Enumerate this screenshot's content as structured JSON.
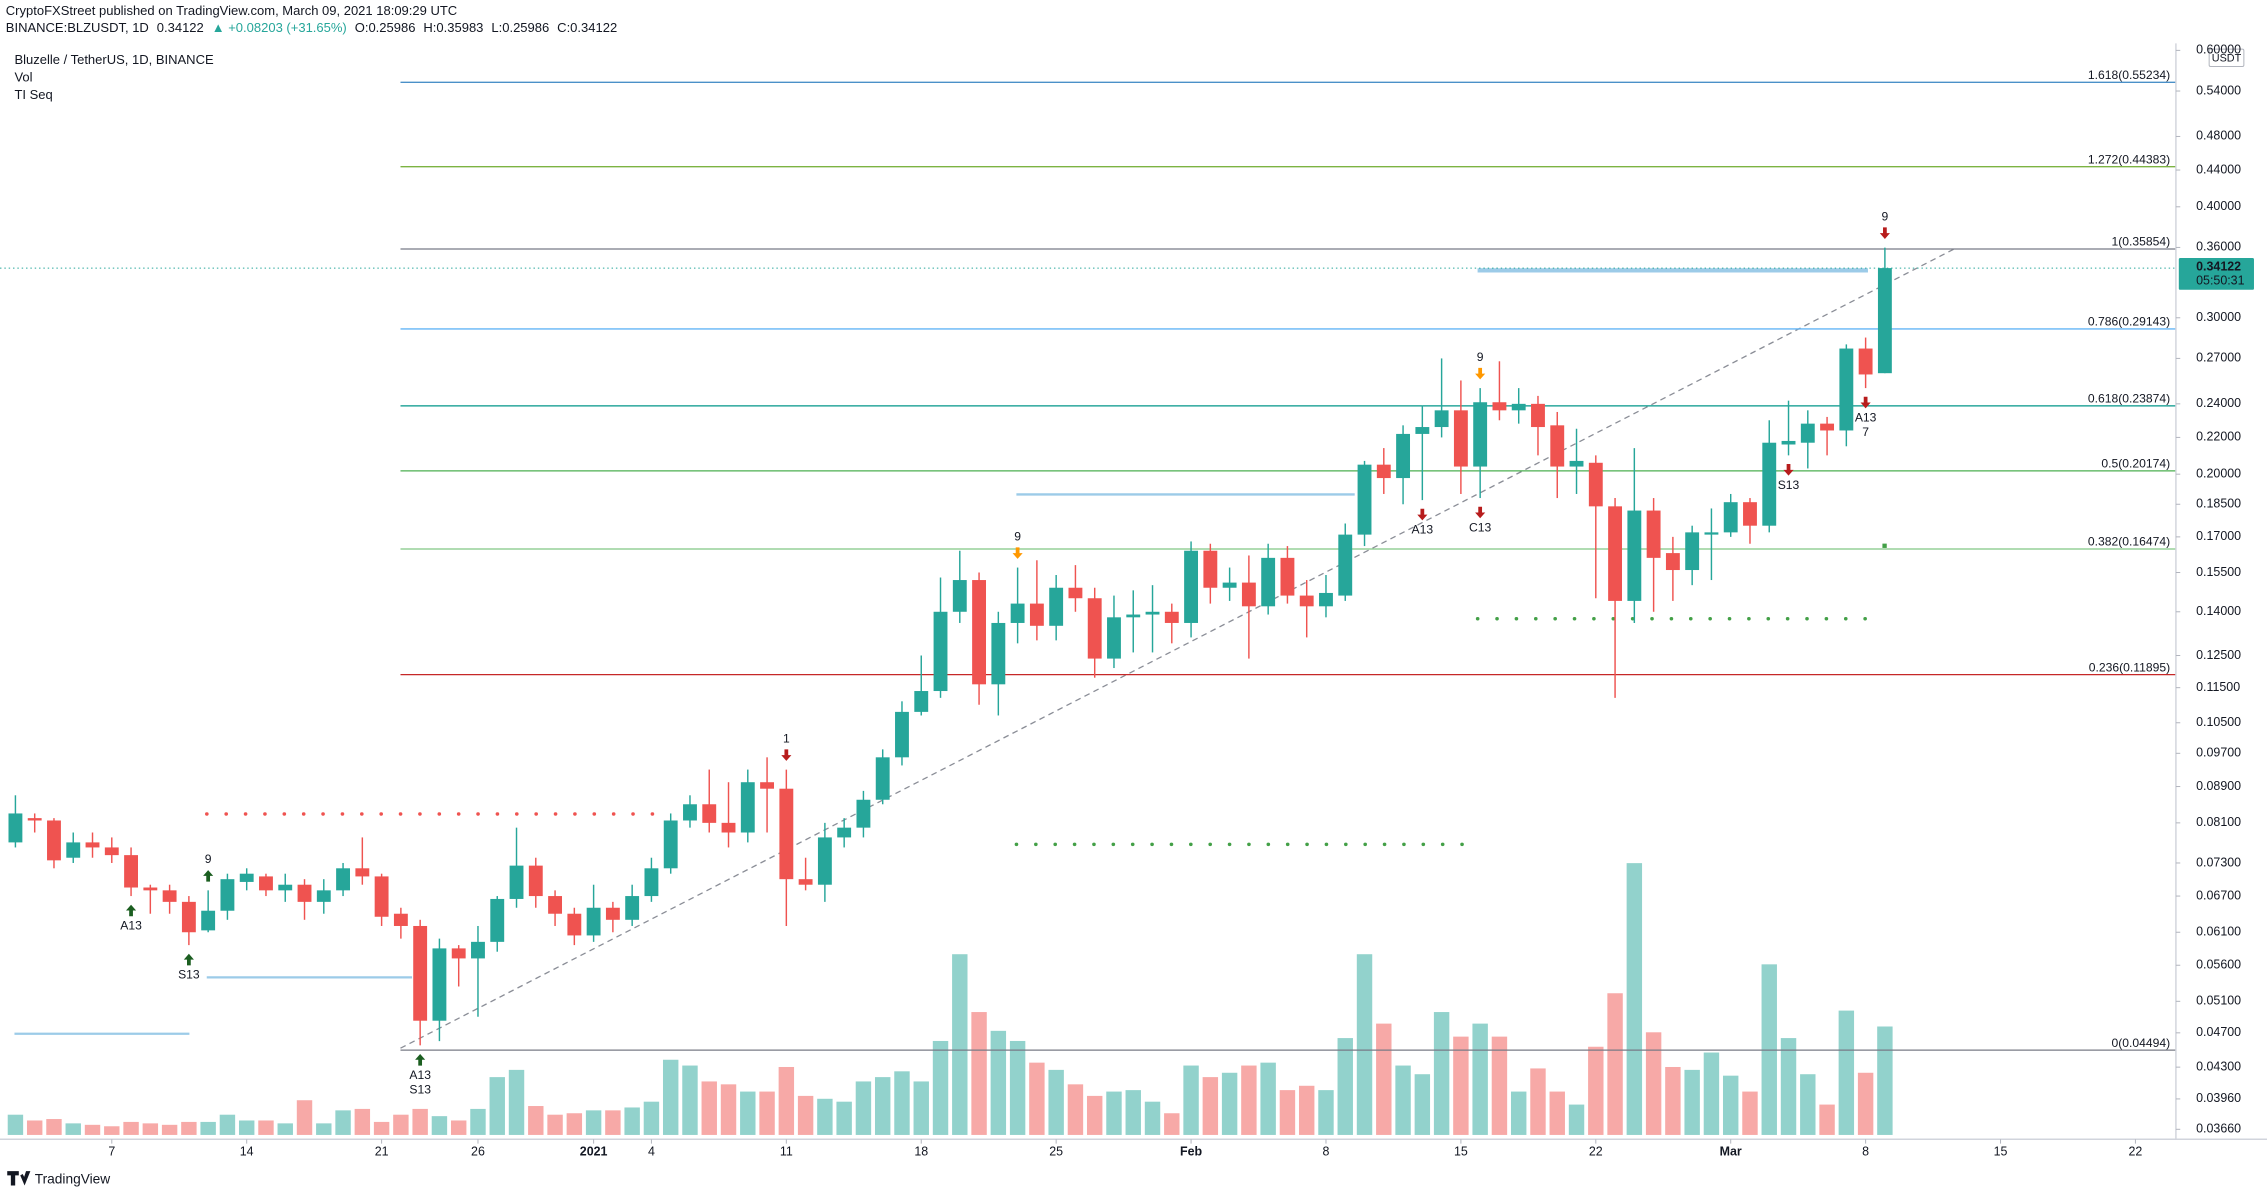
{
  "chart_data": {
    "type": "candlestick",
    "title": "Bluzelle / TetherUS, 1D, BINANCE",
    "publisher": "CryptoFXStreet published on TradingView.com, March 09, 2021 18:09:29 UTC",
    "header": {
      "symbol": "BINANCE:BLZUSDT, 1D",
      "change": "▲ +0.08203 (+31.65%)",
      "ohlc_labels": [
        "O:",
        "H:",
        "L:",
        "C:"
      ]
    },
    "indicators": [
      "Vol",
      "TI Seq"
    ],
    "currency": "USDT",
    "countdown": "05:50:31",
    "brand": "TradingView",
    "log_scale": true,
    "grid": false,
    "up_color": "#26a69a",
    "down_color": "#ef5350",
    "x": [
      0,
      1,
      2,
      3,
      4,
      5,
      6,
      7,
      8,
      9,
      10,
      11,
      12,
      13,
      14,
      15,
      16,
      17,
      18,
      19,
      20,
      21,
      22,
      23,
      24,
      25,
      26,
      27,
      28,
      29,
      30,
      31,
      32,
      33,
      34,
      35,
      36,
      37,
      38,
      39,
      40,
      41,
      42,
      43,
      44,
      45,
      46,
      47,
      48,
      49,
      50,
      51,
      52,
      53,
      54,
      55,
      56,
      57,
      58,
      59,
      60,
      61,
      62,
      63,
      64,
      65,
      66,
      67,
      68,
      69,
      70,
      71,
      72,
      73,
      74,
      75,
      76,
      77,
      78,
      79,
      80,
      81,
      82,
      83,
      84,
      85,
      86,
      87,
      88,
      89,
      90,
      91,
      92,
      93,
      94,
      95,
      96,
      97
    ],
    "open": [
      0.077,
      0.082,
      0.0815,
      0.074,
      0.077,
      0.076,
      0.0745,
      0.0685,
      0.068,
      0.066,
      0.0613,
      0.0645,
      0.0695,
      0.0705,
      0.068,
      0.069,
      0.066,
      0.068,
      0.072,
      0.0705,
      0.064,
      0.062,
      0.0485,
      0.0585,
      0.057,
      0.0595,
      0.0665,
      0.0725,
      0.067,
      0.064,
      0.0605,
      0.065,
      0.063,
      0.067,
      0.072,
      0.0815,
      0.085,
      0.081,
      0.079,
      0.09,
      0.0885,
      0.07,
      0.069,
      0.078,
      0.08,
      0.086,
      0.096,
      0.108,
      0.114,
      0.14,
      0.152,
      0.116,
      0.136,
      0.143,
      0.135,
      0.149,
      0.145,
      0.124,
      0.138,
      0.139,
      0.14,
      0.136,
      0.164,
      0.149,
      0.151,
      0.142,
      0.161,
      0.146,
      0.142,
      0.146,
      0.171,
      0.205,
      0.198,
      0.222,
      0.226,
      0.236,
      0.204,
      0.241,
      0.236,
      0.24,
      0.227,
      0.204,
      0.206,
      0.184,
      0.144,
      0.182,
      0.163,
      0.156,
      0.171,
      0.172,
      0.186,
      0.175,
      0.216,
      0.217,
      0.228,
      0.224,
      0.277,
      0.25986
    ],
    "high": [
      0.087,
      0.083,
      0.082,
      0.079,
      0.079,
      0.078,
      0.076,
      0.069,
      0.069,
      0.067,
      0.068,
      0.071,
      0.072,
      0.071,
      0.071,
      0.07,
      0.07,
      0.073,
      0.078,
      0.071,
      0.065,
      0.063,
      0.06,
      0.059,
      0.062,
      0.067,
      0.08,
      0.074,
      0.068,
      0.065,
      0.069,
      0.066,
      0.069,
      0.074,
      0.083,
      0.087,
      0.093,
      0.09,
      0.093,
      0.096,
      0.093,
      0.074,
      0.081,
      0.082,
      0.088,
      0.098,
      0.111,
      0.125,
      0.153,
      0.164,
      0.155,
      0.14,
      0.157,
      0.16,
      0.154,
      0.158,
      0.149,
      0.146,
      0.148,
      0.15,
      0.143,
      0.168,
      0.167,
      0.157,
      0.162,
      0.167,
      0.166,
      0.152,
      0.154,
      0.176,
      0.207,
      0.214,
      0.227,
      0.239,
      0.27,
      0.255,
      0.25,
      0.268,
      0.25,
      0.245,
      0.235,
      0.225,
      0.21,
      0.188,
      0.214,
      0.188,
      0.17,
      0.175,
      0.183,
      0.19,
      0.188,
      0.23,
      0.242,
      0.236,
      0.232,
      0.28,
      0.285,
      0.35983
    ],
    "low": [
      0.076,
      0.079,
      0.072,
      0.073,
      0.074,
      0.073,
      0.067,
      0.064,
      0.064,
      0.059,
      0.061,
      0.063,
      0.068,
      0.067,
      0.066,
      0.063,
      0.064,
      0.067,
      0.069,
      0.062,
      0.06,
      0.0455,
      0.046,
      0.053,
      0.049,
      0.058,
      0.065,
      0.065,
      0.062,
      0.059,
      0.0595,
      0.061,
      0.062,
      0.066,
      0.071,
      0.08,
      0.079,
      0.076,
      0.077,
      0.079,
      0.062,
      0.068,
      0.066,
      0.076,
      0.078,
      0.085,
      0.094,
      0.107,
      0.112,
      0.136,
      0.11,
      0.107,
      0.129,
      0.13,
      0.13,
      0.14,
      0.118,
      0.121,
      0.126,
      0.126,
      0.129,
      0.131,
      0.143,
      0.144,
      0.124,
      0.139,
      0.143,
      0.131,
      0.138,
      0.144,
      0.166,
      0.19,
      0.185,
      0.187,
      0.22,
      0.19,
      0.188,
      0.23,
      0.228,
      0.21,
      0.188,
      0.19,
      0.145,
      0.112,
      0.136,
      0.14,
      0.144,
      0.15,
      0.152,
      0.17,
      0.167,
      0.172,
      0.21,
      0.203,
      0.21,
      0.215,
      0.25,
      0.25986
    ],
    "close": [
      0.083,
      0.0815,
      0.0735,
      0.077,
      0.076,
      0.0745,
      0.0685,
      0.068,
      0.066,
      0.061,
      0.0645,
      0.07,
      0.071,
      0.068,
      0.069,
      0.066,
      0.068,
      0.072,
      0.0705,
      0.0635,
      0.062,
      0.0485,
      0.0585,
      0.057,
      0.0595,
      0.0665,
      0.0725,
      0.067,
      0.064,
      0.0605,
      0.065,
      0.063,
      0.067,
      0.072,
      0.0815,
      0.085,
      0.081,
      0.079,
      0.09,
      0.0885,
      0.07,
      0.069,
      0.078,
      0.08,
      0.086,
      0.096,
      0.108,
      0.114,
      0.14,
      0.152,
      0.116,
      0.136,
      0.143,
      0.135,
      0.149,
      0.145,
      0.124,
      0.138,
      0.139,
      0.14,
      0.136,
      0.164,
      0.149,
      0.151,
      0.142,
      0.161,
      0.146,
      0.142,
      0.147,
      0.171,
      0.205,
      0.198,
      0.222,
      0.226,
      0.236,
      0.204,
      0.241,
      0.236,
      0.24,
      0.226,
      0.204,
      0.207,
      0.184,
      0.144,
      0.182,
      0.161,
      0.156,
      0.172,
      0.172,
      0.186,
      0.175,
      0.217,
      0.218,
      0.228,
      0.224,
      0.277,
      0.259,
      0.34122
    ],
    "volume": [
      14,
      10,
      11,
      8,
      7,
      6,
      9,
      8,
      7,
      9,
      9,
      14,
      10,
      10,
      8,
      24,
      8,
      17,
      18,
      9,
      14,
      18,
      13,
      10,
      18,
      40,
      45,
      20,
      14,
      15,
      17,
      17,
      19,
      23,
      52,
      48,
      37,
      35,
      30,
      30,
      47,
      27,
      25,
      23,
      37,
      40,
      44,
      37,
      65,
      125,
      85,
      72,
      65,
      50,
      45,
      35,
      27,
      30,
      31,
      23,
      15,
      48,
      40,
      43,
      48,
      50,
      31,
      34,
      31,
      67,
      125,
      77,
      48,
      42,
      85,
      68,
      77,
      68,
      30,
      46,
      30,
      21,
      61,
      98,
      188,
      71,
      47,
      45,
      57,
      41,
      30,
      118,
      67,
      42,
      21,
      86,
      43,
      75
    ],
    "xlim": [
      -0.5,
      112.1
    ],
    "xticks": [
      {
        "value": 5,
        "label": "7"
      },
      {
        "value": 12,
        "label": "14"
      },
      {
        "value": 19,
        "label": "21"
      },
      {
        "value": 24,
        "label": "26"
      },
      {
        "value": 30,
        "label": "2021"
      },
      {
        "value": 33,
        "label": "4"
      },
      {
        "value": 40,
        "label": "11"
      },
      {
        "value": 47,
        "label": "18"
      },
      {
        "value": 54,
        "label": "25"
      },
      {
        "value": 61,
        "label": "Feb"
      },
      {
        "value": 68,
        "label": "8"
      },
      {
        "value": 75,
        "label": "15"
      },
      {
        "value": 82,
        "label": "22"
      },
      {
        "value": 89,
        "label": "Mar"
      },
      {
        "value": 96,
        "label": "8"
      },
      {
        "value": 103,
        "label": "15"
      },
      {
        "value": 110,
        "label": "22"
      }
    ],
    "ylim": [
      0.0354,
      0.611
    ],
    "yticks": [
      {
        "value": 0.6,
        "label": "0.60000"
      },
      {
        "value": 0.54,
        "label": "0.54000"
      },
      {
        "value": 0.48,
        "label": "0.48000"
      },
      {
        "value": 0.44,
        "label": "0.44000"
      },
      {
        "value": 0.4,
        "label": "0.40000"
      },
      {
        "value": 0.36,
        "label": "0.36000"
      },
      {
        "value": 0.3,
        "label": "0.30000"
      },
      {
        "value": 0.27,
        "label": "0.27000"
      },
      {
        "value": 0.24,
        "label": "0.24000"
      },
      {
        "value": 0.22,
        "label": "0.22000"
      },
      {
        "value": 0.2,
        "label": "0.20000"
      },
      {
        "value": 0.185,
        "label": "0.18500"
      },
      {
        "value": 0.17,
        "label": "0.17000"
      },
      {
        "value": 0.155,
        "label": "0.15500"
      },
      {
        "value": 0.14,
        "label": "0.14000"
      },
      {
        "value": 0.125,
        "label": "0.12500"
      },
      {
        "value": 0.115,
        "label": "0.11500"
      },
      {
        "value": 0.105,
        "label": "0.10500"
      },
      {
        "value": 0.097,
        "label": "0.09700"
      },
      {
        "value": 0.089,
        "label": "0.08900"
      },
      {
        "value": 0.081,
        "label": "0.08100"
      },
      {
        "value": 0.073,
        "label": "0.07300"
      },
      {
        "value": 0.067,
        "label": "0.06700"
      },
      {
        "value": 0.061,
        "label": "0.06100"
      },
      {
        "value": 0.056,
        "label": "0.05600"
      },
      {
        "value": 0.051,
        "label": "0.05100"
      },
      {
        "value": 0.047,
        "label": "0.04700"
      },
      {
        "value": 0.043,
        "label": "0.04300"
      },
      {
        "value": 0.0396,
        "label": "0.03960"
      },
      {
        "value": 0.0366,
        "label": "0.03660"
      }
    ],
    "fib_levels": [
      {
        "value": 0.55234,
        "label": "1.618(0.55234)",
        "color": "#4a90c8"
      },
      {
        "value": 0.44383,
        "label": "1.272(0.44383)",
        "color": "#7cb342"
      },
      {
        "value": 0.35854,
        "label": "1(0.35854)",
        "color": "#787b86"
      },
      {
        "value": 0.29143,
        "label": "0.786(0.29143)",
        "color": "#64b5f6"
      },
      {
        "value": 0.23874,
        "label": "0.618(0.23874)",
        "color": "#009688"
      },
      {
        "value": 0.20174,
        "label": "0.5(0.20174)",
        "color": "#4caf50"
      },
      {
        "value": 0.16474,
        "label": "0.382(0.16474)",
        "color": "#81c784"
      },
      {
        "value": 0.11895,
        "label": "0.236(0.11895)",
        "color": "#c62828"
      },
      {
        "value": 0.04494,
        "label": "0(0.04494)",
        "color": "#787b86"
      }
    ],
    "annotations": [
      {
        "text": "A13",
        "x": 6,
        "pos": "below",
        "color": "#2196f3",
        "arrow": "up",
        "arrow_color": "#1b5e20"
      },
      {
        "text": "S13",
        "x": 9,
        "pos": "below",
        "color": "#ff9800",
        "arrow": "up",
        "arrow_color": "#1b5e20"
      },
      {
        "text": "9",
        "x": 10,
        "pos": "above",
        "color": "#e65100",
        "arrow": "up",
        "arrow_color": "#1b5e20"
      },
      {
        "text": "A13",
        "x": 21,
        "pos": "below",
        "color": "#2196f3",
        "arrow": "up",
        "arrow_color": "#1b5e20"
      },
      {
        "text": "S13",
        "x": 21,
        "pos": "below",
        "color": "#ff9800"
      },
      {
        "text": "1",
        "x": 40,
        "pos": "above",
        "color": "#ef5350",
        "arrow": "down",
        "arrow_color": "#b71c1c"
      },
      {
        "text": "9",
        "x": 52,
        "pos": "above",
        "color": "#26a69a",
        "arrow": "down",
        "arrow_color": "#ff9800"
      },
      {
        "text": "A13",
        "x": 73,
        "pos": "below",
        "color": "#2196f3",
        "arrow": "down",
        "arrow_color": "#b71c1c"
      },
      {
        "text": "9",
        "x": 76,
        "pos": "above",
        "color": "#26a69a",
        "arrow": "down",
        "arrow_color": "#ff9800"
      },
      {
        "text": "C13",
        "x": 76,
        "pos": "below",
        "color": "#e040fb",
        "arrow": "down",
        "arrow_color": "#b71c1c"
      },
      {
        "text": "S13",
        "x": 92,
        "pos": "below",
        "color": "#ff9800",
        "arrow": "down",
        "arrow_color": "#b71c1c"
      },
      {
        "text": "9",
        "x": 97,
        "pos": "above",
        "color": "#26a69a",
        "arrow": "down",
        "arrow_color": "#b71c1c"
      },
      {
        "text": "A13",
        "x": 96,
        "pos": "below",
        "color": "#2196f3",
        "arrow": "down",
        "arrow_color": "#b71c1c"
      },
      {
        "text": "7",
        "x": 96,
        "pos": "below",
        "color": "#2196f3"
      }
    ]
  }
}
